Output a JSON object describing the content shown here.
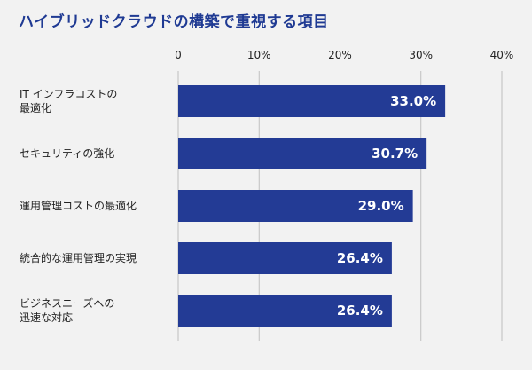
{
  "chart_data": {
    "type": "bar",
    "orientation": "horizontal",
    "title": "ハイブリッドクラウドの構築で重視する項目",
    "categories": [
      [
        "IT インフラコストの",
        "最適化"
      ],
      [
        "セキュリティの強化"
      ],
      [
        "運用管理コストの最適化"
      ],
      [
        "統合的な運用管理の実現"
      ],
      [
        "ビジネスニーズへの",
        "迅速な対応"
      ]
    ],
    "values": [
      33.0,
      30.7,
      29.0,
      26.4,
      26.4
    ],
    "value_labels": [
      "33.0%",
      "30.7%",
      "29.0%",
      "26.4%",
      "26.4%"
    ],
    "xticks": [
      0,
      10,
      20,
      30,
      40
    ],
    "xtick_labels": [
      "0",
      "10%",
      "20%",
      "30%",
      "40%"
    ],
    "xlim": [
      0,
      40
    ],
    "grid": true,
    "bar_color": "#233b95",
    "grid_color": "#bfbfbf"
  }
}
